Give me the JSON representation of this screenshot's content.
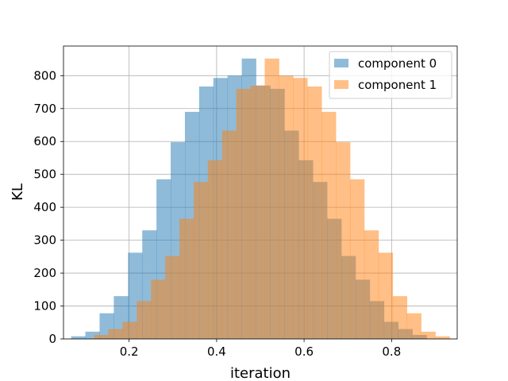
{
  "chart_data": {
    "type": "bar",
    "title": "",
    "xlabel": "iteration",
    "ylabel": "KL",
    "xlim": [
      0.05,
      0.95
    ],
    "ylim": [
      0,
      890
    ],
    "xticks": [
      0.2,
      0.4,
      0.6,
      0.8
    ],
    "xtick_labels": [
      "0.2",
      "0.4",
      "0.6",
      "0.8"
    ],
    "yticks": [
      0,
      100,
      200,
      300,
      400,
      500,
      600,
      700,
      800
    ],
    "ytick_labels": [
      "0",
      "100",
      "200",
      "300",
      "400",
      "500",
      "600",
      "700",
      "800"
    ],
    "grid": true,
    "legend_position": "top-right",
    "bin_width": 0.0325,
    "series": [
      {
        "name": "component 0",
        "color": "#1f77b4",
        "opacity": 0.5,
        "bins": [
          {
            "x0": 0.0675,
            "x1": 0.1,
            "value": 8
          },
          {
            "x0": 0.1,
            "x1": 0.1325,
            "value": 22
          },
          {
            "x0": 0.1325,
            "x1": 0.165,
            "value": 78
          },
          {
            "x0": 0.165,
            "x1": 0.1975,
            "value": 130
          },
          {
            "x0": 0.1975,
            "x1": 0.23,
            "value": 262
          },
          {
            "x0": 0.23,
            "x1": 0.2625,
            "value": 330
          },
          {
            "x0": 0.2625,
            "x1": 0.295,
            "value": 485
          },
          {
            "x0": 0.295,
            "x1": 0.3275,
            "value": 598
          },
          {
            "x0": 0.3275,
            "x1": 0.36,
            "value": 690
          },
          {
            "x0": 0.36,
            "x1": 0.3925,
            "value": 767
          },
          {
            "x0": 0.3925,
            "x1": 0.425,
            "value": 793
          },
          {
            "x0": 0.425,
            "x1": 0.4575,
            "value": 800
          },
          {
            "x0": 0.4575,
            "x1": 0.49,
            "value": 852
          },
          {
            "x0": 0.49,
            "x1": 0.5225,
            "value": 770
          },
          {
            "x0": 0.5225,
            "x1": 0.555,
            "value": 760
          },
          {
            "x0": 0.555,
            "x1": 0.5875,
            "value": 633
          },
          {
            "x0": 0.5875,
            "x1": 0.62,
            "value": 543
          },
          {
            "x0": 0.62,
            "x1": 0.6525,
            "value": 477
          },
          {
            "x0": 0.6525,
            "x1": 0.685,
            "value": 365
          },
          {
            "x0": 0.685,
            "x1": 0.7175,
            "value": 252
          },
          {
            "x0": 0.7175,
            "x1": 0.75,
            "value": 180
          },
          {
            "x0": 0.75,
            "x1": 0.7825,
            "value": 115
          },
          {
            "x0": 0.7825,
            "x1": 0.815,
            "value": 52
          },
          {
            "x0": 0.815,
            "x1": 0.8475,
            "value": 30
          },
          {
            "x0": 0.8475,
            "x1": 0.88,
            "value": 12
          }
        ]
      },
      {
        "name": "component 1",
        "color": "#ff7f0e",
        "opacity": 0.5,
        "bins": [
          {
            "x0": 0.12,
            "x1": 0.1525,
            "value": 12
          },
          {
            "x0": 0.1525,
            "x1": 0.185,
            "value": 30
          },
          {
            "x0": 0.185,
            "x1": 0.2175,
            "value": 52
          },
          {
            "x0": 0.2175,
            "x1": 0.25,
            "value": 115
          },
          {
            "x0": 0.25,
            "x1": 0.2825,
            "value": 180
          },
          {
            "x0": 0.2825,
            "x1": 0.315,
            "value": 252
          },
          {
            "x0": 0.315,
            "x1": 0.3475,
            "value": 365
          },
          {
            "x0": 0.3475,
            "x1": 0.38,
            "value": 477
          },
          {
            "x0": 0.38,
            "x1": 0.4125,
            "value": 543
          },
          {
            "x0": 0.4125,
            "x1": 0.445,
            "value": 633
          },
          {
            "x0": 0.445,
            "x1": 0.4775,
            "value": 760
          },
          {
            "x0": 0.4775,
            "x1": 0.51,
            "value": 770
          },
          {
            "x0": 0.51,
            "x1": 0.5425,
            "value": 852
          },
          {
            "x0": 0.5425,
            "x1": 0.575,
            "value": 800
          },
          {
            "x0": 0.575,
            "x1": 0.6075,
            "value": 793
          },
          {
            "x0": 0.6075,
            "x1": 0.64,
            "value": 767
          },
          {
            "x0": 0.64,
            "x1": 0.6725,
            "value": 690
          },
          {
            "x0": 0.6725,
            "x1": 0.705,
            "value": 598
          },
          {
            "x0": 0.705,
            "x1": 0.7375,
            "value": 485
          },
          {
            "x0": 0.7375,
            "x1": 0.77,
            "value": 330
          },
          {
            "x0": 0.77,
            "x1": 0.8025,
            "value": 262
          },
          {
            "x0": 0.8025,
            "x1": 0.835,
            "value": 130
          },
          {
            "x0": 0.835,
            "x1": 0.8675,
            "value": 78
          },
          {
            "x0": 0.8675,
            "x1": 0.9,
            "value": 22
          },
          {
            "x0": 0.9,
            "x1": 0.9325,
            "value": 8
          }
        ]
      }
    ]
  }
}
